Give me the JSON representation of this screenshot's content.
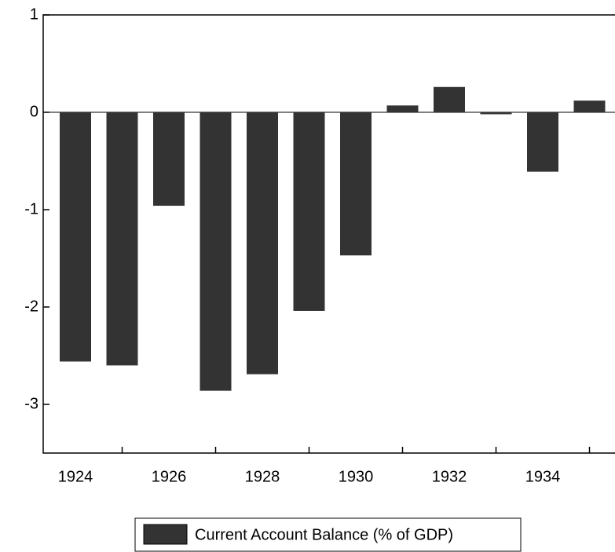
{
  "chart_data": {
    "type": "bar",
    "categories": [
      "1924",
      null,
      "1926",
      null,
      "1928",
      null,
      "1930",
      null,
      "1932",
      null,
      "1934",
      null
    ],
    "series": [
      {
        "name": "Current Account Balance (% of GDP)",
        "color": "#333333",
        "values": [
          -2.56,
          -2.6,
          -0.96,
          -2.86,
          -2.69,
          -2.04,
          -1.47,
          0.07,
          0.26,
          -0.02,
          -0.61,
          0.12
        ]
      }
    ],
    "ylim": [
      -3.5,
      1
    ],
    "yticks": [
      -3,
      -2,
      -1,
      0,
      1
    ],
    "legend": "bottom"
  }
}
